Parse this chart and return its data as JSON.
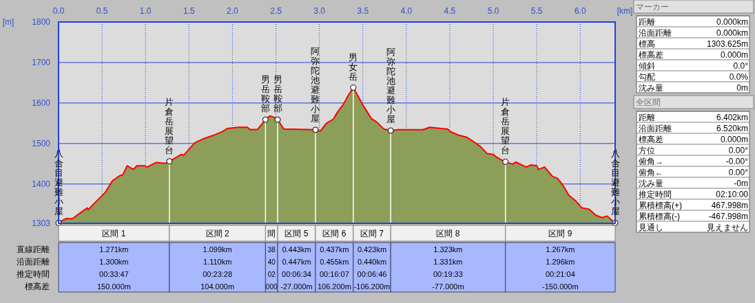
{
  "chart_data": [
    {
      "type": "area",
      "xlabel": "[km]",
      "ylabel": "[m]",
      "xlim": [
        0,
        6.402
      ],
      "ylim": [
        1303,
        1800
      ],
      "xticks": [
        {
          "value": 0,
          "label": "0.0"
        },
        {
          "value": 0.5,
          "label": "0.5"
        },
        {
          "value": 1,
          "label": "1.0"
        },
        {
          "value": 1.5,
          "label": "1.5"
        },
        {
          "value": 2,
          "label": "2.0"
        },
        {
          "value": 2.5,
          "label": "2.5"
        },
        {
          "value": 3,
          "label": "3.0"
        },
        {
          "value": 3.5,
          "label": "3.5"
        },
        {
          "value": 4,
          "label": "4.0"
        },
        {
          "value": 4.5,
          "label": "4.5"
        },
        {
          "value": 5,
          "label": "5.0"
        },
        {
          "value": 5.5,
          "label": "5.5"
        },
        {
          "value": 6,
          "label": "6.0"
        }
      ],
      "yticks": [
        1303,
        1400,
        1500,
        1600,
        1700,
        1800
      ],
      "grid": true,
      "series": [
        {
          "type": "area",
          "color": "#8c9e58",
          "x": [
            0,
            0.016,
            0.09,
            0.156,
            0.22,
            0.33,
            0.34,
            0.41,
            0.54,
            0.62,
            0.7,
            0.74,
            0.79,
            0.86,
            0.9,
            0.99,
            1.02,
            1.12,
            1.23,
            1.275,
            1.41,
            1.44,
            1.51,
            1.57,
            1.68,
            1.78,
            1.89,
            1.94,
            2.07,
            2.17,
            2.21,
            2.29,
            2.38,
            2.43,
            2.49,
            2.52,
            2.59,
            2.955,
            3.01,
            3.08,
            3.16,
            3.21,
            3.28,
            3.33,
            3.39,
            3.5,
            3.6,
            3.66,
            3.74,
            3.82,
            3.9,
            4.19,
            4.27,
            4.4,
            4.47,
            4.51,
            4.61,
            4.69,
            4.77,
            4.85,
            4.93,
            5.0,
            5.04,
            5.1,
            5.14,
            5.22,
            5.26,
            5.38,
            5.43,
            5.5,
            5.52,
            5.59,
            5.68,
            5.74,
            5.8,
            5.87,
            5.95,
            6.02,
            6.1,
            6.18,
            6.25,
            6.31,
            6.36,
            6.402
          ],
          "values": [
            1304,
            1307,
            1315,
            1314,
            1324,
            1341,
            1336,
            1352,
            1380,
            1408,
            1420,
            1423,
            1445,
            1436,
            1445,
            1445,
            1442,
            1453,
            1451,
            1456,
            1473,
            1471,
            1488,
            1502,
            1513,
            1520,
            1530,
            1537,
            1540,
            1540,
            1534,
            1535,
            1559,
            1568,
            1564,
            1559,
            1536,
            1534,
            1530,
            1550,
            1560,
            1578,
            1598,
            1618,
            1638,
            1595,
            1561,
            1553,
            1536,
            1532,
            1534,
            1534,
            1540,
            1537,
            1536,
            1529,
            1520,
            1516,
            1505,
            1493,
            1475,
            1473,
            1466,
            1459,
            1455,
            1449,
            1454,
            1442,
            1447,
            1445,
            1436,
            1442,
            1419,
            1414,
            1397,
            1372,
            1358,
            1341,
            1338,
            1323,
            1317,
            1321,
            1311,
            1304
          ]
        },
        {
          "type": "lollipop",
          "color": "#ffffff",
          "marker": "circle",
          "x": [
            0,
            1.275,
            2.38,
            2.52,
            2.955,
            3.39,
            3.82,
            5.14,
            6.402
          ],
          "values": [
            1304,
            1456,
            1559,
            1559,
            1534,
            1638,
            1532,
            1455,
            1304
          ]
        }
      ],
      "annotations": [
        {
          "text": "八合目避難小屋",
          "x": 0,
          "y": 1304
        },
        {
          "text": "片倉岳展望台",
          "x": 1.275,
          "y": 1456
        },
        {
          "text": "男岳鞍部",
          "x": 2.38,
          "y": 1559
        },
        {
          "text": "男岳鞍部",
          "x": 2.52,
          "y": 1559
        },
        {
          "text": "阿弥陀池避難小屋",
          "x": 2.955,
          "y": 1534
        },
        {
          "text": "男女岳",
          "x": 3.39,
          "y": 1638
        },
        {
          "text": "阿弥陀池避難小屋",
          "x": 3.82,
          "y": 1532
        },
        {
          "text": "片倉岳展望台",
          "x": 5.14,
          "y": 1455
        },
        {
          "text": "八合目避難小屋",
          "x": 6.402,
          "y": 1304
        }
      ]
    },
    {
      "type": "other",
      "annotations": [
        "区間 1",
        "区間 2",
        "間",
        "区間 5",
        "区間 6",
        "区間 7",
        "区間 8",
        "区間 9",
        "直線距離",
        "沿面距離",
        "推定時間",
        "標高差",
        "1.271km",
        "1.300km",
        "00:33:47",
        "150.000m",
        "1.099km",
        "1.110km",
        "00:23:28",
        "104.000m",
        "38",
        "40",
        "02",
        "000",
        "0.443km",
        "0.447km",
        "00:06:34",
        "-27.000m",
        "0.437km",
        "0.455km",
        "00:16:07",
        "106.200m",
        "0.423km",
        "0.440km",
        "00:06:46",
        "-106.200m",
        "1.323km",
        "1.331km",
        "00:19:33",
        "-77.000m",
        "1.267km",
        "1.296km",
        "00:21:04",
        "-150.000m"
      ]
    },
    {
      "type": "other",
      "title": "マーカー",
      "annotations": [
        "距離",
        "0.000km",
        "沿面距離",
        "0.000km",
        "標高",
        "1303.625m",
        "標高差",
        "0.000m",
        "傾斜",
        "0.0°",
        "勾配",
        "0.0%",
        "沈み量",
        "0m"
      ]
    },
    {
      "type": "other",
      "title": "全区間",
      "annotations": [
        "距離",
        "6.402km",
        "沿面距離",
        "6.520km",
        "標高差",
        "0.000m",
        "方位",
        "0.00°",
        "俯角→",
        "-0.00°",
        "俯角←",
        "0.00°",
        "沈み量",
        "-0m",
        "推定時間",
        "02:10:00",
        "累積標高(+)",
        "467.998m",
        "累積標高(-)",
        "-467.998m",
        "見通し",
        "見えません"
      ]
    }
  ]
}
